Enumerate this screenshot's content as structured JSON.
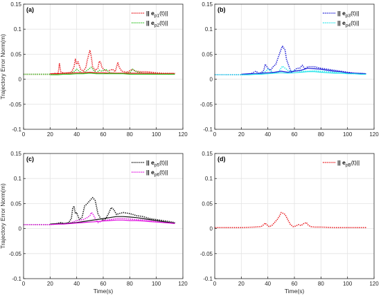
{
  "chart_data": [
    {
      "type": "line",
      "panel_label": "(a)",
      "xlabel": "",
      "ylabel": "Trajectory Error Norm(m)",
      "xlim": [
        0,
        120
      ],
      "ylim": [
        -0.1,
        0.15
      ],
      "xticks": [
        0,
        20,
        40,
        60,
        80,
        100,
        120
      ],
      "yticks": [
        -0.1,
        -0.05,
        0,
        0.05,
        0.1,
        0.15
      ],
      "xtick_labels": [
        "0",
        "20",
        "40",
        "60",
        "80",
        "100",
        "120"
      ],
      "ytick_labels": [
        "-0.1",
        "-0.05",
        "0",
        "0.05",
        "0.1",
        "0.15"
      ],
      "grid": true,
      "legend_position": "top-right",
      "series": [
        {
          "name_main": "|| e",
          "name_sub": "p1",
          "name_tail": "(t)||",
          "color": "#e8161b",
          "style": "dotted",
          "x": [
            0,
            20,
            24,
            26,
            27,
            28,
            30,
            33,
            36,
            38,
            39,
            40,
            41,
            43,
            45,
            47,
            48,
            49,
            50,
            51,
            52,
            54,
            56,
            57,
            58,
            59,
            61,
            63,
            65,
            67,
            69,
            70,
            71,
            72,
            74,
            78,
            82,
            84,
            88,
            93,
            100,
            105,
            110,
            114
          ],
          "y": [
            0.01,
            0.01,
            0.012,
            0.011,
            0.031,
            0.015,
            0.012,
            0.013,
            0.014,
            0.024,
            0.04,
            0.03,
            0.035,
            0.02,
            0.016,
            0.024,
            0.038,
            0.048,
            0.058,
            0.045,
            0.025,
            0.018,
            0.022,
            0.036,
            0.034,
            0.024,
            0.018,
            0.016,
            0.018,
            0.02,
            0.015,
            0.024,
            0.034,
            0.024,
            0.016,
            0.014,
            0.02,
            0.016,
            0.015,
            0.015,
            0.013,
            0.012,
            0.012,
            0.012
          ]
        },
        {
          "name_main": "|| e",
          "name_sub": "p2",
          "name_tail": "(t)||",
          "color": "#35c42a",
          "style": "dotted",
          "x": [
            0,
            20,
            26,
            30,
            35,
            38,
            40,
            43,
            45,
            47,
            49,
            51,
            53,
            55,
            57,
            59,
            62,
            65,
            70,
            75,
            80,
            82,
            85,
            90,
            100,
            110,
            114
          ],
          "y": [
            0.01,
            0.01,
            0.01,
            0.011,
            0.012,
            0.015,
            0.02,
            0.014,
            0.012,
            0.016,
            0.02,
            0.024,
            0.017,
            0.013,
            0.018,
            0.016,
            0.02,
            0.013,
            0.012,
            0.012,
            0.013,
            0.02,
            0.015,
            0.012,
            0.011,
            0.01,
            0.011
          ]
        },
        {
          "name_main": "",
          "name_sub": "",
          "name_tail": "",
          "color": "#e8161b",
          "style": "solid",
          "x": [
            20,
            26,
            30,
            35,
            40,
            45,
            50,
            55,
            60,
            65,
            70,
            75,
            80,
            85,
            90,
            95,
            100,
            105,
            110,
            114
          ],
          "y": [
            0.011,
            0.011,
            0.012,
            0.012,
            0.013,
            0.013,
            0.014,
            0.013,
            0.013,
            0.012,
            0.012,
            0.012,
            0.012,
            0.012,
            0.012,
            0.012,
            0.011,
            0.011,
            0.011,
            0.011
          ]
        },
        {
          "name_main": "",
          "name_sub": "",
          "name_tail": "",
          "color": "#35c42a",
          "style": "solid",
          "x": [
            20,
            26,
            30,
            35,
            40,
            45,
            50,
            55,
            60,
            65,
            70,
            75,
            80,
            85,
            90,
            95,
            100,
            105,
            110,
            114
          ],
          "y": [
            0.009,
            0.009,
            0.01,
            0.01,
            0.011,
            0.011,
            0.012,
            0.011,
            0.011,
            0.011,
            0.011,
            0.011,
            0.01,
            0.01,
            0.01,
            0.01,
            0.01,
            0.01,
            0.01,
            0.01
          ]
        }
      ]
    },
    {
      "type": "line",
      "panel_label": "(b)",
      "xlabel": "",
      "ylabel": "",
      "xlim": [
        0,
        120
      ],
      "ylim": [
        -0.1,
        0.15
      ],
      "xticks": [
        0,
        20,
        40,
        60,
        80,
        100,
        120
      ],
      "yticks": [
        -0.1,
        -0.05,
        0,
        0.05,
        0.1,
        0.15
      ],
      "xtick_labels": [
        "0",
        "20",
        "40",
        "60",
        "80",
        "100",
        "120"
      ],
      "ytick_labels": [
        "-0.1",
        "-0.05",
        "0",
        "0.05",
        "0.1",
        "0.15"
      ],
      "grid": true,
      "legend_position": "top-right",
      "series": [
        {
          "name_main": "|| e",
          "name_sub": "p3",
          "name_tail": "(t)||",
          "color": "#1a1ad6",
          "style": "dotted",
          "x": [
            0,
            20,
            25,
            28,
            31,
            33,
            35,
            37,
            38,
            40,
            42,
            44,
            46,
            48,
            50,
            51,
            52,
            53,
            54,
            56,
            58,
            60,
            62,
            64,
            66,
            68,
            70,
            75,
            80,
            85,
            90,
            95,
            100,
            105,
            110,
            114
          ],
          "y": [
            0.009,
            0.009,
            0.01,
            0.012,
            0.016,
            0.012,
            0.013,
            0.018,
            0.03,
            0.022,
            0.018,
            0.025,
            0.03,
            0.045,
            0.06,
            0.066,
            0.062,
            0.058,
            0.04,
            0.025,
            0.012,
            0.018,
            0.022,
            0.022,
            0.028,
            0.02,
            0.025,
            0.025,
            0.022,
            0.02,
            0.018,
            0.016,
            0.014,
            0.012,
            0.012,
            0.011
          ]
        },
        {
          "name_main": "|| e",
          "name_sub": "p4",
          "name_tail": "(t)||",
          "color": "#22e4ea",
          "style": "dotted",
          "x": [
            0,
            20,
            25,
            30,
            35,
            38,
            40,
            44,
            48,
            51,
            53,
            55,
            57,
            60,
            65,
            70,
            75,
            80,
            85,
            90,
            95,
            100,
            105,
            110,
            114
          ],
          "y": [
            0.009,
            0.009,
            0.01,
            0.01,
            0.011,
            0.015,
            0.02,
            0.013,
            0.015,
            0.026,
            0.022,
            0.018,
            0.016,
            0.017,
            0.016,
            0.016,
            0.017,
            0.016,
            0.015,
            0.014,
            0.013,
            0.012,
            0.011,
            0.011,
            0.01
          ]
        },
        {
          "name_main": "",
          "name_sub": "",
          "name_tail": "",
          "color": "#1a1ad6",
          "style": "solid",
          "x": [
            20,
            26,
            30,
            35,
            40,
            45,
            50,
            55,
            60,
            65,
            70,
            75,
            80,
            85,
            90,
            95,
            100,
            105,
            110,
            114
          ],
          "y": [
            0.01,
            0.011,
            0.011,
            0.012,
            0.013,
            0.014,
            0.016,
            0.014,
            0.016,
            0.018,
            0.022,
            0.021,
            0.02,
            0.018,
            0.016,
            0.015,
            0.013,
            0.012,
            0.011,
            0.011
          ]
        },
        {
          "name_main": "",
          "name_sub": "",
          "name_tail": "",
          "color": "#22e4ea",
          "style": "solid",
          "x": [
            20,
            26,
            30,
            35,
            40,
            45,
            50,
            55,
            60,
            65,
            70,
            75,
            80,
            85,
            90,
            95,
            100,
            105,
            110,
            114
          ],
          "y": [
            0.009,
            0.009,
            0.01,
            0.01,
            0.011,
            0.012,
            0.013,
            0.012,
            0.013,
            0.014,
            0.015,
            0.015,
            0.014,
            0.013,
            0.012,
            0.012,
            0.011,
            0.011,
            0.01,
            0.01
          ]
        }
      ]
    },
    {
      "type": "line",
      "panel_label": "(c)",
      "xlabel": "Time(s)",
      "ylabel": "Trajectory Error Norm(m)",
      "xlim": [
        0,
        120
      ],
      "ylim": [
        -0.1,
        0.15
      ],
      "xticks": [
        0,
        20,
        40,
        60,
        80,
        100,
        120
      ],
      "yticks": [
        -0.1,
        -0.05,
        0,
        0.05,
        0.1,
        0.15
      ],
      "xtick_labels": [
        "0",
        "20",
        "40",
        "60",
        "80",
        "100",
        "120"
      ],
      "ytick_labels": [
        "-0.1",
        "-0.05",
        "0",
        "0.05",
        "0.1",
        "0.15"
      ],
      "grid": true,
      "legend_position": "top-right",
      "series": [
        {
          "name_main": "|| e",
          "name_sub": "p5",
          "name_tail": "(t)||",
          "color": "#111111",
          "style": "dotted",
          "x": [
            0,
            20,
            25,
            28,
            31,
            34,
            36,
            37,
            38,
            39,
            40,
            42,
            44,
            46,
            48,
            50,
            52,
            54,
            56,
            58,
            60,
            62,
            64,
            66,
            68,
            70,
            72,
            75,
            80,
            85,
            90,
            95,
            100,
            105,
            110,
            114
          ],
          "y": [
            0.008,
            0.008,
            0.01,
            0.012,
            0.01,
            0.012,
            0.02,
            0.04,
            0.045,
            0.03,
            0.032,
            0.018,
            0.022,
            0.045,
            0.05,
            0.056,
            0.062,
            0.056,
            0.03,
            0.02,
            0.016,
            0.02,
            0.03,
            0.042,
            0.038,
            0.028,
            0.03,
            0.032,
            0.03,
            0.026,
            0.024,
            0.02,
            0.018,
            0.016,
            0.014,
            0.012
          ]
        },
        {
          "name_main": "|| e",
          "name_sub": "p6",
          "name_tail": "(t)||",
          "color": "#e010e0",
          "style": "dotted",
          "x": [
            0,
            20,
            25,
            30,
            35,
            38,
            40,
            45,
            48,
            50,
            51,
            52,
            54,
            56,
            58,
            60,
            65,
            70,
            75,
            80,
            85,
            90,
            95,
            100,
            105,
            110,
            114
          ],
          "y": [
            0.008,
            0.008,
            0.009,
            0.01,
            0.011,
            0.014,
            0.016,
            0.018,
            0.022,
            0.026,
            0.032,
            0.03,
            0.02,
            0.012,
            0.014,
            0.016,
            0.018,
            0.02,
            0.02,
            0.019,
            0.018,
            0.017,
            0.016,
            0.014,
            0.013,
            0.012,
            0.011
          ]
        },
        {
          "name_main": "",
          "name_sub": "",
          "name_tail": "",
          "color": "#111111",
          "style": "solid",
          "x": [
            20,
            26,
            30,
            35,
            40,
            45,
            50,
            55,
            60,
            65,
            70,
            75,
            80,
            85,
            90,
            95,
            100,
            105,
            110,
            114
          ],
          "y": [
            0.009,
            0.01,
            0.01,
            0.011,
            0.012,
            0.014,
            0.016,
            0.018,
            0.02,
            0.022,
            0.024,
            0.024,
            0.023,
            0.022,
            0.02,
            0.018,
            0.016,
            0.014,
            0.012,
            0.011
          ]
        },
        {
          "name_main": "",
          "name_sub": "",
          "name_tail": "",
          "color": "#e010e0",
          "style": "solid",
          "x": [
            20,
            26,
            30,
            35,
            40,
            45,
            50,
            55,
            60,
            65,
            70,
            75,
            80,
            85,
            90,
            95,
            100,
            105,
            110,
            114
          ],
          "y": [
            0.008,
            0.009,
            0.009,
            0.01,
            0.011,
            0.012,
            0.013,
            0.014,
            0.015,
            0.016,
            0.017,
            0.017,
            0.016,
            0.016,
            0.015,
            0.014,
            0.013,
            0.012,
            0.011,
            0.01
          ]
        }
      ]
    },
    {
      "type": "line",
      "panel_label": "(d)",
      "xlabel": "Time(s)",
      "ylabel": "",
      "xlim": [
        0,
        120
      ],
      "ylim": [
        -0.1,
        0.15
      ],
      "xticks": [
        0,
        20,
        40,
        60,
        80,
        100,
        120
      ],
      "yticks": [
        -0.1,
        -0.05,
        0,
        0.05,
        0.1,
        0.15
      ],
      "xtick_labels": [
        "0",
        "20",
        "40",
        "60",
        "80",
        "100",
        "120"
      ],
      "ytick_labels": [
        "-0.1",
        "-0.05",
        "0",
        "0.05",
        "0.1",
        "0.15"
      ],
      "grid": true,
      "legend_position": "top-right",
      "series": [
        {
          "name_main": "|| e",
          "name_sub": "pB",
          "name_tail": "(t)||",
          "color": "#e8161b",
          "style": "dotted",
          "x": [
            0,
            20,
            30,
            35,
            37,
            38,
            39,
            41,
            43,
            45,
            47,
            49,
            50,
            51,
            52,
            53,
            55,
            57,
            59,
            61,
            63,
            65,
            67,
            69,
            70,
            72,
            75,
            80,
            90,
            100,
            110,
            114
          ],
          "y": [
            0.002,
            0.002,
            0.003,
            0.004,
            0.008,
            0.011,
            0.008,
            0.004,
            0.006,
            0.012,
            0.018,
            0.026,
            0.032,
            0.031,
            0.03,
            0.028,
            0.018,
            0.008,
            0.004,
            0.005,
            0.008,
            0.006,
            0.01,
            0.012,
            0.008,
            0.004,
            0.003,
            0.003,
            0.002,
            0.002,
            0.002,
            0.002
          ]
        }
      ]
    }
  ]
}
